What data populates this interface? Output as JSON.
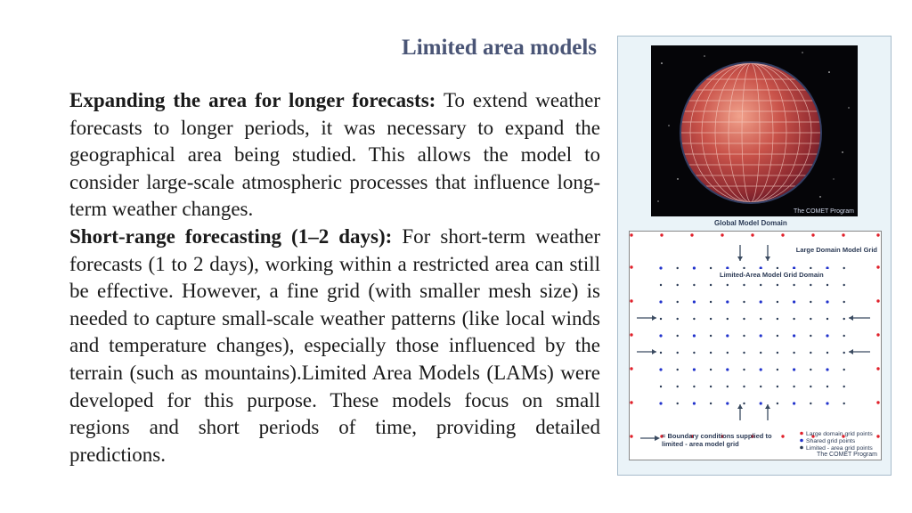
{
  "slide": {
    "title": "Limited area models",
    "paragraphs": [
      {
        "heading": "Expanding the area for longer forecasts:",
        "text": " To extend weather forecasts to longer periods, it was necessary to expand the geographical area being studied. This allows the model to consider large-scale atmospheric processes that influence long-term weather changes."
      },
      {
        "heading": "Short-range forecasting (1–2 days):",
        "text": " For short-term weather forecasts (1 to 2 days), working within a restricted area can still be effective. However, a fine grid (with smaller mesh size) is needed to capture small-scale weather patterns (like local winds and temperature changes), especially those influenced by the terrain (such as mountains).Limited Area Models (LAMs) were developed for this purpose. These models focus on small regions and short periods of time, providing detailed predictions."
      }
    ]
  },
  "figure": {
    "globe_credit": "The COMET Program",
    "global_domain_label": "Global Model Domain",
    "large_domain_label": "Large Domain Model Grid",
    "limited_domain_label": "Limited-Area Model Grid Domain",
    "boundary_legend": "= Boundary conditions supplied to limited - area model grid",
    "legend_items": [
      {
        "label": "Large domain grid points",
        "color": "#e0202a"
      },
      {
        "label": "Shared grid points",
        "color": "#2233cc"
      },
      {
        "label": "Limited - area grid points",
        "color": "#2a3a55"
      }
    ],
    "grid_credit": "The COMET Program",
    "colors": {
      "large_point": "#e0202a",
      "shared_point": "#2233cc",
      "limited_point": "#2a3a55",
      "arrow": "#3a4a60",
      "title": "#4a5576"
    }
  }
}
